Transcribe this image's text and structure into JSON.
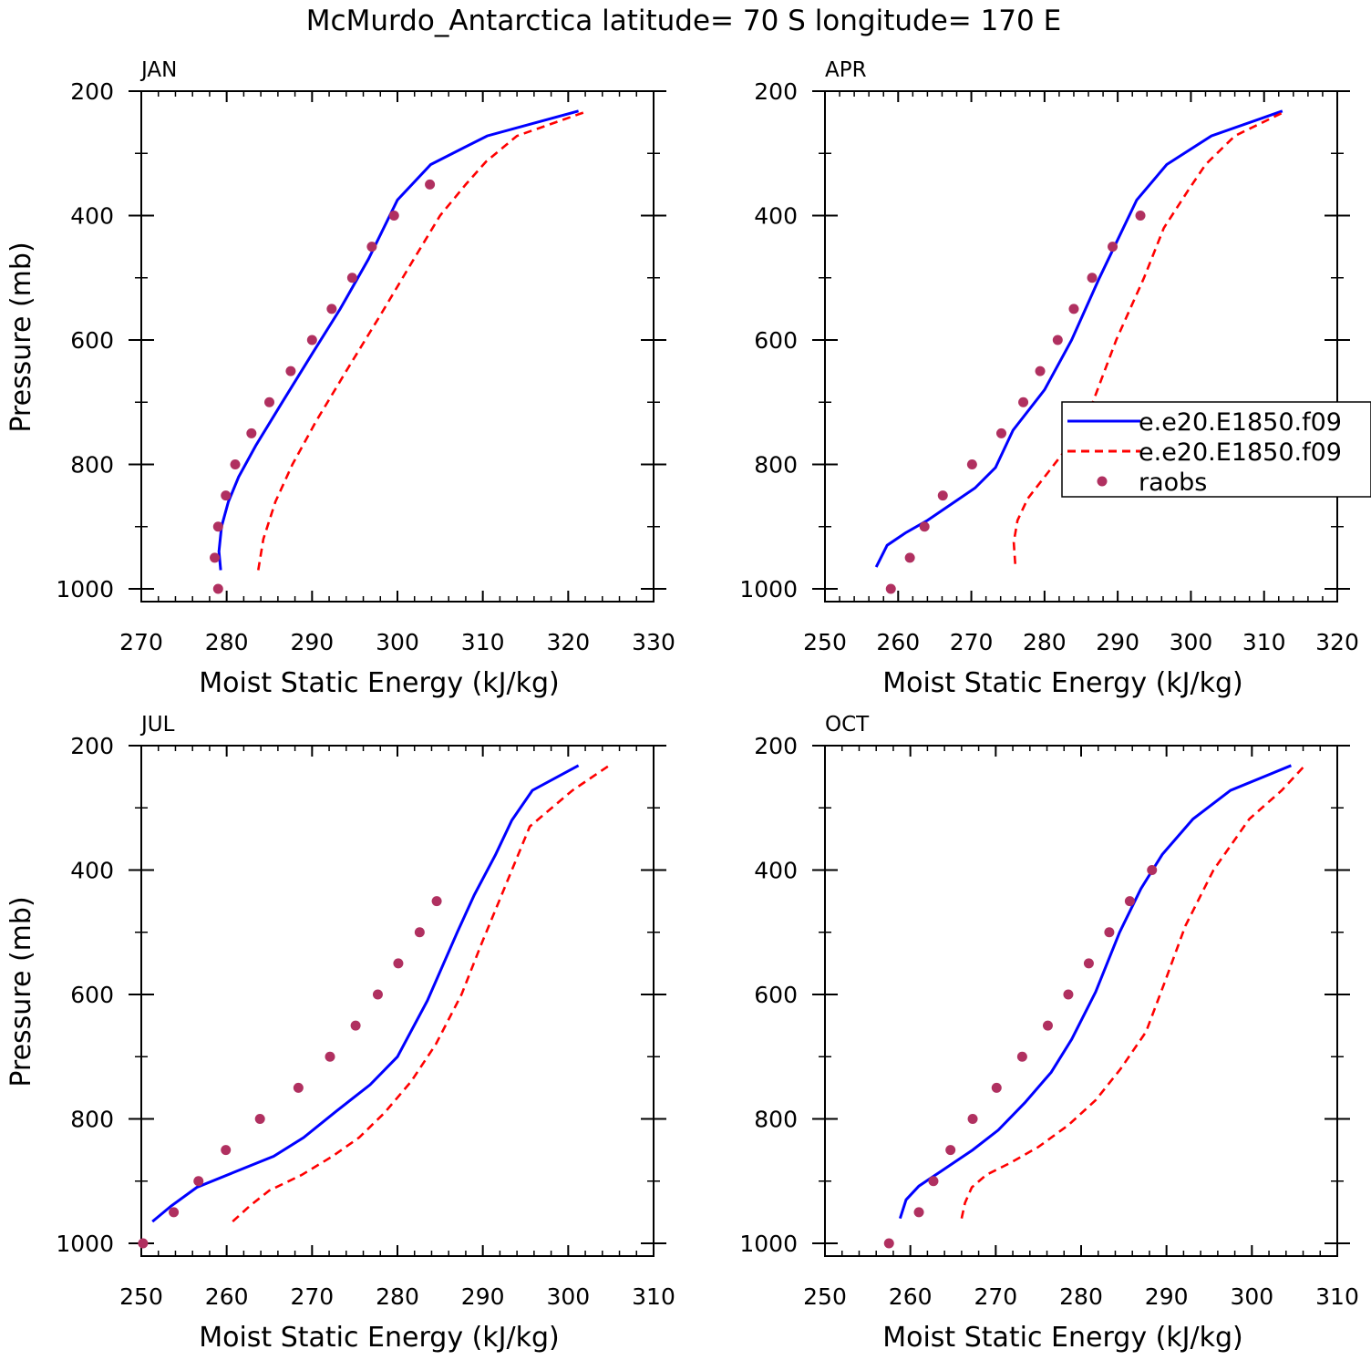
{
  "figure": {
    "title": "McMurdo_Antarctica  latitude= 70 S longitude= 170 E"
  },
  "chart_data": [
    {
      "type": "line",
      "panel": "JAN",
      "xlabel": "Moist Static Energy (kJ/kg)",
      "ylabel": "Pressure (mb)",
      "xlim": [
        270,
        330
      ],
      "ylim": [
        1000,
        200
      ],
      "y_axis_inverted": true,
      "xticks": [
        "270",
        "280",
        "290",
        "300",
        "310",
        "320",
        "330"
      ],
      "yticks": [
        "200",
        "400",
        "600",
        "800",
        "1000"
      ],
      "grid": false,
      "series": [
        {
          "name": "e.e20.E1850.f09",
          "style": "solid",
          "color": "#0000ff",
          "points": [
            [
              279.3,
              970
            ],
            [
              279.1,
              940
            ],
            [
              279.4,
              900
            ],
            [
              280.2,
              860
            ],
            [
              281.4,
              820
            ],
            [
              283.4,
              770
            ],
            [
              286.5,
              700
            ],
            [
              290.1,
              620
            ],
            [
              293.3,
              550
            ],
            [
              296.6,
              470
            ],
            [
              300,
              375
            ],
            [
              303.9,
              318
            ],
            [
              310.5,
              272
            ],
            [
              321.2,
              232
            ]
          ]
        },
        {
          "name": "e.e20.E1850.f09",
          "style": "dashed",
          "color": "#ff0000",
          "points": [
            [
              283.7,
              970
            ],
            [
              284.3,
              920
            ],
            [
              285.7,
              860
            ],
            [
              287.7,
              800
            ],
            [
              290.5,
              730
            ],
            [
              294,
              650
            ],
            [
              298,
              560
            ],
            [
              301.7,
              475
            ],
            [
              305,
              400
            ],
            [
              308,
              350
            ],
            [
              310.4,
              313
            ],
            [
              314,
              272
            ],
            [
              322.3,
              232
            ]
          ]
        },
        {
          "name": "raobs",
          "style": "markers",
          "color": "#b03060",
          "points": [
            [
              279,
              1000
            ],
            [
              278.6,
              950
            ],
            [
              279,
              900
            ],
            [
              279.9,
              850
            ],
            [
              281,
              800
            ],
            [
              282.9,
              750
            ],
            [
              285,
              700
            ],
            [
              287.5,
              650
            ],
            [
              290,
              600
            ],
            [
              292.3,
              550
            ],
            [
              294.7,
              500
            ],
            [
              297,
              450
            ],
            [
              299.6,
              400
            ],
            [
              303.8,
              350
            ]
          ]
        }
      ]
    },
    {
      "type": "line",
      "panel": "APR",
      "xlabel": "Moist Static Energy (kJ/kg)",
      "ylabel": "",
      "xlim": [
        250,
        320
      ],
      "ylim": [
        1000,
        200
      ],
      "y_axis_inverted": true,
      "xticks": [
        "250",
        "260",
        "270",
        "280",
        "290",
        "300",
        "310",
        "320"
      ],
      "yticks": [
        "200",
        "400",
        "600",
        "800",
        "1000"
      ],
      "grid": false,
      "legend": {
        "position": "right",
        "entries": [
          {
            "label": "e.e20.E1850.f09",
            "style": "solid",
            "color": "#0000ff"
          },
          {
            "label": "e.e20.E1850.f09",
            "style": "dashed",
            "color": "#ff0000"
          },
          {
            "label": "raobs",
            "style": "markers",
            "color": "#b03060"
          }
        ]
      },
      "series": [
        {
          "name": "e.e20.E1850.f09",
          "style": "solid",
          "color": "#0000ff",
          "points": [
            [
              257,
              965
            ],
            [
              258.5,
              930
            ],
            [
              261,
              910
            ],
            [
              264,
              890
            ],
            [
              267,
              866
            ],
            [
              270.5,
              838
            ],
            [
              273.3,
              805
            ],
            [
              275.7,
              745
            ],
            [
              280,
              680
            ],
            [
              283.7,
              600
            ],
            [
              287.5,
              500
            ],
            [
              292.6,
              375
            ],
            [
              296.7,
              318
            ],
            [
              302.8,
              272
            ],
            [
              312.5,
              232
            ]
          ]
        },
        {
          "name": "e.e20.E1850.f09",
          "style": "dashed",
          "color": "#ff0000",
          "points": [
            [
              276,
              960
            ],
            [
              275.8,
              925
            ],
            [
              276.3,
              890
            ],
            [
              277.7,
              855
            ],
            [
              280,
              820
            ],
            [
              283.3,
              770
            ],
            [
              286.6,
              700
            ],
            [
              289.8,
              600
            ],
            [
              293.6,
              500
            ],
            [
              296.3,
              420
            ],
            [
              299.6,
              360
            ],
            [
              302,
              318
            ],
            [
              306,
              272
            ],
            [
              313,
              232
            ]
          ]
        },
        {
          "name": "raobs",
          "style": "markers",
          "color": "#b03060",
          "points": [
            [
              259,
              1000
            ],
            [
              261.6,
              950
            ],
            [
              263.6,
              900
            ],
            [
              266.1,
              850
            ],
            [
              270.1,
              800
            ],
            [
              274.1,
              750
            ],
            [
              277.1,
              700
            ],
            [
              279.4,
              650
            ],
            [
              281.8,
              600
            ],
            [
              284,
              550
            ],
            [
              286.5,
              500
            ],
            [
              289.3,
              450
            ],
            [
              293.1,
              400
            ]
          ]
        }
      ]
    },
    {
      "type": "line",
      "panel": "JUL",
      "xlabel": "Moist Static Energy (kJ/kg)",
      "ylabel": "Pressure (mb)",
      "xlim": [
        250,
        310
      ],
      "ylim": [
        1000,
        200
      ],
      "y_axis_inverted": true,
      "xticks": [
        "250",
        "260",
        "270",
        "280",
        "290",
        "300",
        "310"
      ],
      "yticks": [
        "200",
        "400",
        "600",
        "800",
        "1000"
      ],
      "grid": false,
      "series": [
        {
          "name": "e.e20.E1850.f09",
          "style": "solid",
          "color": "#0000ff",
          "points": [
            [
              251.3,
              965
            ],
            [
              253.5,
              940
            ],
            [
              256.5,
              910
            ],
            [
              261,
              885
            ],
            [
              265.5,
              860
            ],
            [
              269,
              830
            ],
            [
              272.8,
              788
            ],
            [
              276.8,
              745
            ],
            [
              280,
              700
            ],
            [
              283.5,
              610
            ],
            [
              287,
              500
            ],
            [
              289,
              440
            ],
            [
              291.5,
              375
            ],
            [
              293.4,
              320
            ],
            [
              295.8,
              272
            ],
            [
              301.2,
              232
            ]
          ]
        },
        {
          "name": "e.e20.E1850.f09",
          "style": "dashed",
          "color": "#ff0000",
          "points": [
            [
              260.7,
              965
            ],
            [
              262.7,
              940
            ],
            [
              265,
              915
            ],
            [
              268.8,
              890
            ],
            [
              272.4,
              860
            ],
            [
              275.5,
              830
            ],
            [
              278.5,
              790
            ],
            [
              281.6,
              740
            ],
            [
              284.5,
              680
            ],
            [
              287.5,
              600
            ],
            [
              289.8,
              520
            ],
            [
              292.5,
              430
            ],
            [
              295.5,
              330
            ],
            [
              300.5,
              272
            ],
            [
              304.8,
              232
            ]
          ]
        },
        {
          "name": "raobs",
          "style": "markers",
          "color": "#b03060",
          "points": [
            [
              250.2,
              1000
            ],
            [
              253.8,
              950
            ],
            [
              256.7,
              900
            ],
            [
              259.9,
              850
            ],
            [
              263.9,
              800
            ],
            [
              268.4,
              750
            ],
            [
              272.1,
              700
            ],
            [
              275.1,
              650
            ],
            [
              277.7,
              600
            ],
            [
              280.1,
              550
            ],
            [
              282.6,
              500
            ],
            [
              284.6,
              450
            ]
          ]
        }
      ]
    },
    {
      "type": "line",
      "panel": "OCT",
      "xlabel": "Moist Static Energy (kJ/kg)",
      "ylabel": "",
      "xlim": [
        250,
        310
      ],
      "ylim": [
        1000,
        200
      ],
      "y_axis_inverted": true,
      "xticks": [
        "250",
        "260",
        "270",
        "280",
        "290",
        "300",
        "310"
      ],
      "yticks": [
        "200",
        "400",
        "600",
        "800",
        "1000"
      ],
      "grid": false,
      "series": [
        {
          "name": "e.e20.E1850.f09",
          "style": "solid",
          "color": "#0000ff",
          "points": [
            [
              258.8,
              960
            ],
            [
              259.5,
              930
            ],
            [
              261,
              908
            ],
            [
              263.5,
              885
            ],
            [
              267.3,
              850
            ],
            [
              270.3,
              818
            ],
            [
              273.4,
              774
            ],
            [
              276.5,
              725
            ],
            [
              278.9,
              672
            ],
            [
              281.7,
              596
            ],
            [
              284.5,
              500
            ],
            [
              287,
              430
            ],
            [
              289.5,
              375
            ],
            [
              293.1,
              318
            ],
            [
              297.5,
              272
            ],
            [
              304.6,
              232
            ]
          ]
        },
        {
          "name": "e.e20.E1850.f09",
          "style": "dashed",
          "color": "#ff0000",
          "points": [
            [
              266,
              960
            ],
            [
              266.4,
              935
            ],
            [
              267.2,
              910
            ],
            [
              268.9,
              890
            ],
            [
              271.8,
              870
            ],
            [
              275,
              845
            ],
            [
              278.5,
              810
            ],
            [
              281.7,
              770
            ],
            [
              284.6,
              720
            ],
            [
              287.6,
              660
            ],
            [
              289.8,
              580
            ],
            [
              292.2,
              490
            ],
            [
              295.5,
              400
            ],
            [
              299.7,
              318
            ],
            [
              303.5,
              272
            ],
            [
              306.2,
              232
            ]
          ]
        },
        {
          "name": "raobs",
          "style": "markers",
          "color": "#b03060",
          "points": [
            [
              257.5,
              1000
            ],
            [
              261,
              950
            ],
            [
              262.7,
              900
            ],
            [
              264.7,
              850
            ],
            [
              267.3,
              800
            ],
            [
              270.1,
              750
            ],
            [
              273.1,
              700
            ],
            [
              276.1,
              650
            ],
            [
              278.5,
              600
            ],
            [
              280.9,
              550
            ],
            [
              283.3,
              500
            ],
            [
              285.7,
              450
            ],
            [
              288.3,
              400
            ]
          ]
        }
      ]
    }
  ]
}
